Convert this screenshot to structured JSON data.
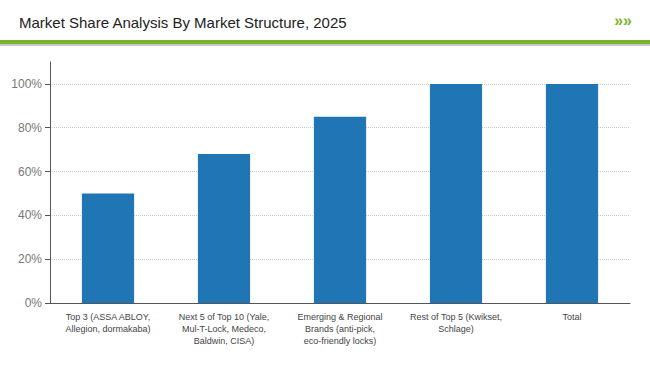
{
  "chart_data": {
    "type": "bar",
    "title": "Market Share Analysis By Market Structure, 2025",
    "categories": [
      "Top 3 (ASSA ABLOY,\nAllegion, dormakaba)",
      "Next 5 of Top 10 (Yale,\nMul-T-Lock, Medeco,\nBaldwin, CISA)",
      "Emerging & Regional\nBrands (anti-pick,\neco-friendly locks)",
      "Rest of Top 5 (Kwikset,\nSchlage)",
      "Total"
    ],
    "values": [
      50,
      68,
      85,
      100,
      100
    ],
    "color": "#2076b4",
    "ylim": [
      0,
      110
    ],
    "yticks": [
      {
        "value": 0,
        "label": "0%"
      },
      {
        "value": 20,
        "label": "20%"
      },
      {
        "value": 40,
        "label": "40%"
      },
      {
        "value": 60,
        "label": "60%"
      },
      {
        "value": 80,
        "label": "80%"
      },
      {
        "value": 100,
        "label": "100%"
      }
    ],
    "grid": true,
    "annotations": [
      "»»"
    ]
  }
}
